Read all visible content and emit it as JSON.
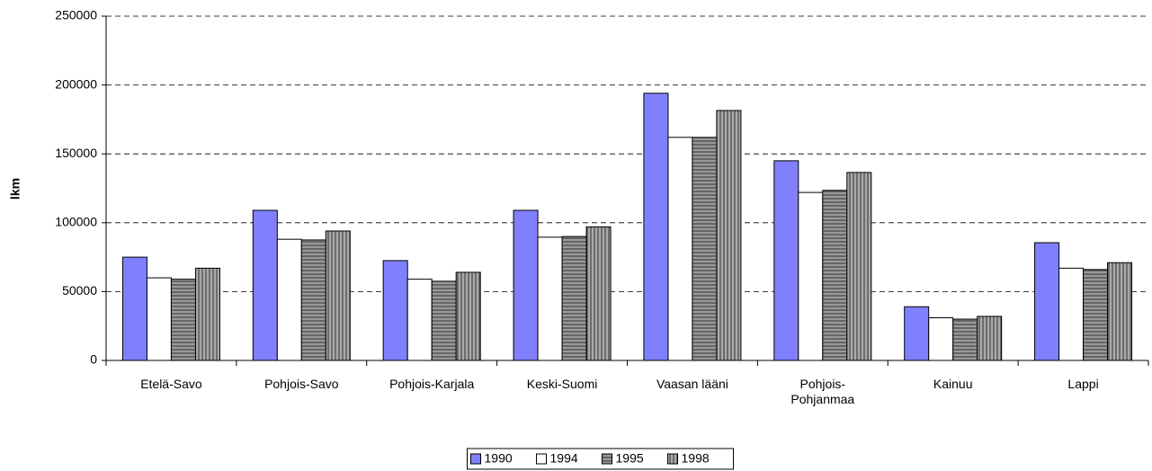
{
  "chart_data": {
    "type": "bar",
    "y_label": "lkm",
    "categories": [
      "Etelä-Savo",
      "Pohjois-Savo",
      "Pohjois-Karjala",
      "Keski-Suomi",
      "Vaasan lääni",
      "Pohjois-Pohjanmaa",
      "Kainuu",
      "Lappi"
    ],
    "series": [
      {
        "name": "1990",
        "color": "#8080ff",
        "hatch": "none",
        "values": [
          75000,
          109000,
          72500,
          109000,
          194000,
          145000,
          39000,
          85500
        ]
      },
      {
        "name": "1994",
        "color": "#ffffff",
        "hatch": "none",
        "values": [
          60000,
          88000,
          59000,
          89500,
          162000,
          122000,
          31000,
          67000
        ]
      },
      {
        "name": "1995",
        "color": "#808080",
        "hatch": "horizontal",
        "values": [
          59000,
          87500,
          57500,
          90000,
          162000,
          123500,
          30000,
          66000
        ]
      },
      {
        "name": "1998",
        "color": "#808080",
        "hatch": "vertical",
        "values": [
          67000,
          94000,
          64000,
          97000,
          181500,
          136500,
          32000,
          71000
        ]
      }
    ],
    "ylim": [
      0,
      250000
    ],
    "yticks": [
      0,
      50000,
      100000,
      150000,
      200000,
      250000
    ],
    "grid": true,
    "legend": "bottom"
  }
}
